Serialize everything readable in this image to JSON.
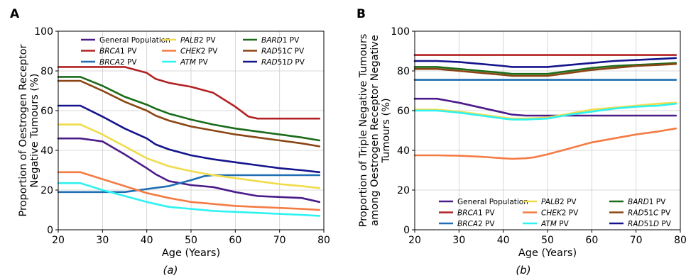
{
  "captions": [
    "(a)",
    "(b)"
  ],
  "chart_data": [
    {
      "type": "line",
      "panel": "A",
      "caption": "(a)",
      "xlabel": "Age (Years)",
      "ylabel_lines": [
        "Proportion of Oestrogen Receptor",
        "Negative Tumours (%)"
      ],
      "xlim": [
        20,
        80
      ],
      "ylim": [
        0,
        100
      ],
      "xticks": [
        20,
        30,
        40,
        50,
        60,
        70,
        80
      ],
      "yticks": [
        0,
        20,
        40,
        60,
        80,
        100
      ],
      "grid": true,
      "legend": {
        "position": "top-right",
        "columns": 3
      },
      "series": [
        {
          "key": "gen",
          "name": "General Population",
          "color": "#4b1b8a",
          "x": [
            20,
            25,
            30,
            35,
            40,
            42,
            45,
            50,
            55,
            60,
            65,
            70,
            75,
            79
          ],
          "y": [
            46,
            46,
            44.5,
            38,
            31,
            28,
            24.5,
            22.5,
            21.5,
            19,
            17,
            16.5,
            16,
            14
          ]
        },
        {
          "key": "brca1",
          "name": "BRCA1 PV",
          "color": "#b22222",
          "x": [
            20,
            25,
            30,
            35,
            40,
            42,
            45,
            50,
            55,
            60,
            63,
            65,
            70,
            75,
            79
          ],
          "y": [
            82,
            82,
            82,
            82,
            79,
            76,
            74,
            72,
            69,
            62,
            57,
            56,
            56,
            56,
            56
          ]
        },
        {
          "key": "brca2",
          "name": "BRCA2 PV",
          "color": "#1f6fb2",
          "x": [
            20,
            25,
            30,
            35,
            40,
            45,
            50,
            53,
            55,
            60,
            65,
            70,
            75,
            79
          ],
          "y": [
            19,
            19,
            19,
            19,
            20.5,
            22,
            25,
            27,
            27.5,
            27.5,
            27.5,
            27.5,
            27.5,
            27.5
          ]
        },
        {
          "key": "palb2",
          "name": "PALB2 PV",
          "color": "#f0dc4a",
          "x": [
            20,
            25,
            30,
            35,
            40,
            45,
            50,
            55,
            60,
            65,
            70,
            75,
            79
          ],
          "y": [
            53,
            53,
            48,
            42,
            36,
            32,
            29.5,
            27.5,
            26,
            24.5,
            23,
            22,
            21
          ]
        },
        {
          "key": "chek2",
          "name": "CHEK2 PV",
          "color": "#f47b42",
          "x": [
            20,
            25,
            30,
            35,
            40,
            45,
            50,
            55,
            60,
            65,
            70,
            75,
            79
          ],
          "y": [
            29,
            29,
            25.5,
            22,
            18.5,
            16,
            14,
            13,
            12,
            11.5,
            11,
            10.5,
            10
          ]
        },
        {
          "key": "atm",
          "name": "ATM PV",
          "color": "#2ef2f2",
          "x": [
            20,
            25,
            30,
            35,
            40,
            45,
            50,
            55,
            60,
            65,
            70,
            75,
            79
          ],
          "y": [
            23.5,
            23.5,
            20,
            17,
            14,
            11.5,
            10.5,
            9.5,
            9,
            8.5,
            8,
            7.5,
            7
          ]
        },
        {
          "key": "bard1",
          "name": "BARD1 PV",
          "color": "#1a6b1a",
          "x": [
            20,
            25,
            30,
            35,
            40,
            42,
            45,
            50,
            55,
            60,
            65,
            70,
            75,
            79
          ],
          "y": [
            77,
            77,
            72.5,
            67,
            63,
            61,
            58.5,
            55.5,
            53,
            51,
            49.5,
            48,
            46.5,
            45
          ]
        },
        {
          "key": "rad51c",
          "name": "RAD51C PV",
          "color": "#8b4513",
          "x": [
            20,
            25,
            30,
            35,
            40,
            42,
            45,
            50,
            55,
            60,
            65,
            70,
            75,
            79
          ],
          "y": [
            75,
            75,
            70,
            64.5,
            60,
            57.5,
            55,
            52,
            50,
            48,
            46.5,
            45,
            43.5,
            42
          ]
        },
        {
          "key": "rad51d",
          "name": "RAD51D PV",
          "color": "#14148c",
          "x": [
            20,
            25,
            30,
            35,
            40,
            42,
            45,
            50,
            55,
            60,
            65,
            70,
            75,
            79
          ],
          "y": [
            62.5,
            62.5,
            57,
            51,
            46,
            43,
            40.5,
            37.5,
            35.5,
            34,
            32.5,
            31,
            30,
            29
          ]
        }
      ]
    },
    {
      "type": "line",
      "panel": "B",
      "caption": "(b)",
      "xlabel": "Age (Years)",
      "ylabel_lines": [
        "Proportion of Triple Negative Tumours",
        "among Oestrogen Receptor Negative",
        "Tumours (%)"
      ],
      "xlim": [
        20,
        80
      ],
      "ylim": [
        0,
        100
      ],
      "xticks": [
        20,
        30,
        40,
        50,
        60,
        70,
        80
      ],
      "yticks": [
        0,
        20,
        40,
        60,
        80,
        100
      ],
      "grid": true,
      "legend": {
        "position": "bottom-right",
        "columns": 3
      },
      "series": [
        {
          "key": "gen",
          "name": "General Population",
          "color": "#4b1b8a",
          "x": [
            20,
            25,
            30,
            35,
            40,
            42,
            45,
            50,
            55,
            60,
            65,
            70,
            75,
            79
          ],
          "y": [
            66,
            66,
            64,
            61.5,
            59,
            58,
            57.5,
            57.5,
            57.5,
            57.5,
            57.5,
            57.5,
            57.5,
            57.5
          ]
        },
        {
          "key": "brca1",
          "name": "BRCA1 PV",
          "color": "#b22222",
          "x": [
            20,
            79
          ],
          "y": [
            88,
            88
          ]
        },
        {
          "key": "brca2",
          "name": "BRCA2 PV",
          "color": "#1f6fb2",
          "x": [
            20,
            79
          ],
          "y": [
            75.5,
            75.5
          ]
        },
        {
          "key": "palb2",
          "name": "PALB2 PV",
          "color": "#f0dc4a",
          "x": [
            20,
            25,
            30,
            35,
            40,
            42,
            45,
            50,
            55,
            60,
            65,
            70,
            75,
            79
          ],
          "y": [
            60.5,
            60.5,
            59.5,
            58,
            56.5,
            56,
            56,
            56.5,
            58.5,
            60.5,
            61.5,
            62.5,
            63.5,
            64
          ]
        },
        {
          "key": "chek2",
          "name": "CHEK2 PV",
          "color": "#f47b42",
          "x": [
            20,
            25,
            30,
            35,
            40,
            42,
            45,
            47,
            50,
            55,
            60,
            65,
            70,
            75,
            79
          ],
          "y": [
            37.5,
            37.5,
            37.3,
            36.8,
            36,
            35.7,
            36,
            36.5,
            38,
            41,
            44,
            46,
            48,
            49.5,
            51
          ]
        },
        {
          "key": "atm",
          "name": "ATM PV",
          "color": "#2ef2f2",
          "x": [
            20,
            25,
            30,
            35,
            40,
            42,
            45,
            50,
            55,
            60,
            65,
            70,
            75,
            79
          ],
          "y": [
            60,
            60,
            59,
            57.5,
            56,
            55.5,
            55.5,
            56,
            58,
            59.5,
            61,
            62,
            62.5,
            63.5
          ]
        },
        {
          "key": "bard1",
          "name": "BARD1 PV",
          "color": "#1a6b1a",
          "x": [
            20,
            25,
            30,
            35,
            40,
            42,
            45,
            50,
            55,
            60,
            65,
            70,
            75,
            79
          ],
          "y": [
            82,
            82,
            81,
            80,
            79,
            78.5,
            78.5,
            78.5,
            80,
            81.5,
            82.5,
            83,
            83.5,
            84
          ]
        },
        {
          "key": "rad51c",
          "name": "RAD51C PV",
          "color": "#8b4513",
          "x": [
            20,
            25,
            30,
            35,
            40,
            42,
            45,
            50,
            55,
            60,
            65,
            70,
            75,
            79
          ],
          "y": [
            81,
            81,
            80,
            79,
            78,
            77.5,
            77.5,
            77.5,
            79,
            80.5,
            81.5,
            82.5,
            83,
            83.5
          ]
        },
        {
          "key": "rad51d",
          "name": "RAD51D PV",
          "color": "#14148c",
          "x": [
            20,
            25,
            30,
            35,
            40,
            42,
            45,
            50,
            55,
            60,
            65,
            70,
            75,
            79
          ],
          "y": [
            85,
            85,
            84.5,
            83.5,
            82.5,
            82,
            82,
            82,
            83,
            84,
            85,
            85.5,
            86,
            86.5
          ]
        }
      ]
    }
  ]
}
